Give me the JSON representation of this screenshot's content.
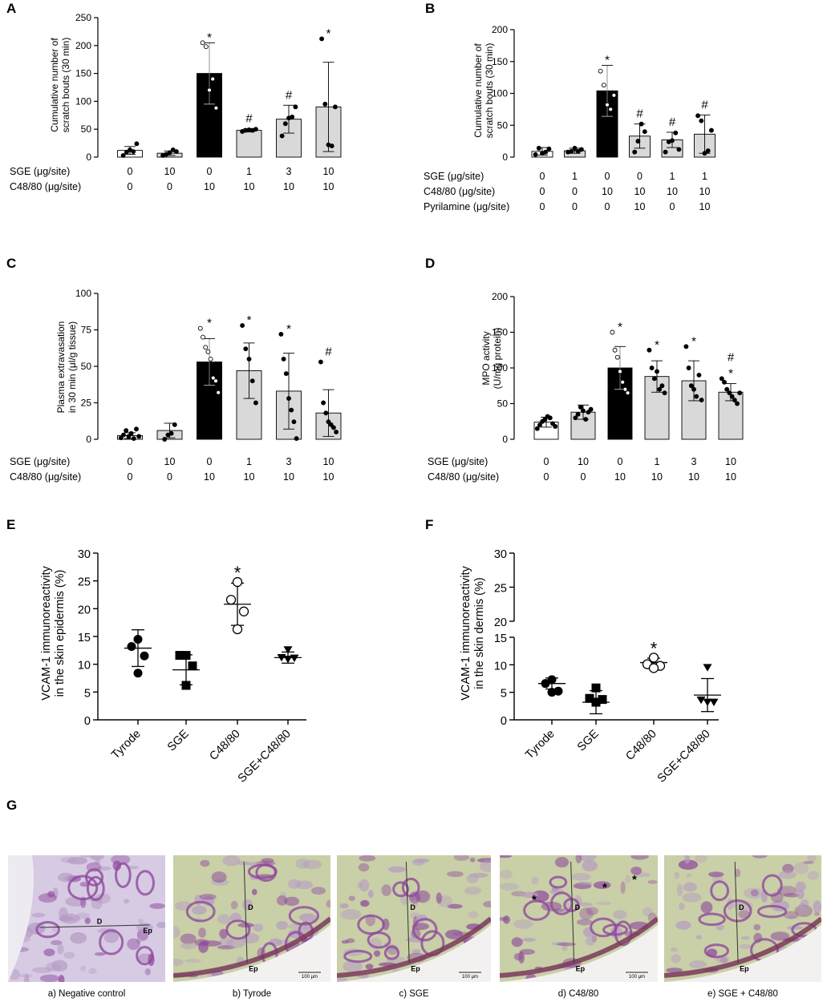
{
  "chart_data": [
    {
      "panel": "A",
      "type": "bar",
      "ylabel": [
        "Cumulative number of",
        "scratch bouts (30 min)"
      ],
      "ylim": [
        0,
        250
      ],
      "yticks": [
        0,
        50,
        100,
        150,
        200,
        250
      ],
      "rows": [
        {
          "label": "SGE (μg/site)",
          "values": [
            "0",
            "10",
            "0",
            "1",
            "3",
            "10"
          ]
        },
        {
          "label": "C48/80 (μg/site)",
          "values": [
            "0",
            "0",
            "10",
            "10",
            "10",
            "10"
          ]
        }
      ],
      "fills": [
        "#ffffff",
        "#d9d9d9",
        "#000000",
        "#d9d9d9",
        "#d9d9d9",
        "#d9d9d9"
      ],
      "values": [
        12,
        7,
        150,
        48,
        68,
        90
      ],
      "errors": [
        7,
        4,
        55,
        3,
        25,
        80
      ],
      "marks": [
        "",
        "",
        "*",
        "#",
        "#",
        "*"
      ],
      "points": [
        [
          3,
          9,
          13,
          10,
          24
        ],
        [
          3,
          5,
          8,
          13,
          10
        ],
        [
          205,
          198,
          120,
          140,
          88
        ],
        [
          46,
          48,
          49,
          48,
          50
        ],
        [
          38,
          60,
          70,
          72,
          90
        ],
        [
          212,
          95,
          22,
          20,
          90
        ]
      ]
    },
    {
      "panel": "B",
      "type": "bar",
      "ylabel": [
        "Cumulative number of",
        "scratch bouts (30 min)"
      ],
      "ylim": [
        0,
        200
      ],
      "yticks": [
        0,
        50,
        100,
        150,
        200
      ],
      "rows": [
        {
          "label": "SGE (μg/site)",
          "values": [
            "0",
            "1",
            "0",
            "0",
            "1",
            "1"
          ]
        },
        {
          "label": "C48/80 (μg/site)",
          "values": [
            "0",
            "0",
            "10",
            "10",
            "10",
            "10"
          ]
        },
        {
          "label": "Pyrilamine (μg/site)",
          "values": [
            "0",
            "0",
            "0",
            "10",
            "0",
            "10"
          ]
        }
      ],
      "fills": [
        "#ffffff",
        "#d9d9d9",
        "#000000",
        "#d9d9d9",
        "#d9d9d9",
        "#d9d9d9"
      ],
      "values": [
        9,
        10,
        104,
        33,
        27,
        36
      ],
      "errors": [
        6,
        4,
        40,
        19,
        12,
        30
      ],
      "marks": [
        "",
        "",
        "*",
        "#",
        "#",
        "#"
      ],
      "points": [
        [
          4,
          14,
          6,
          8,
          13
        ],
        [
          8,
          9,
          14,
          9,
          12
        ],
        [
          135,
          113,
          82,
          75,
          97
        ],
        [
          8,
          25,
          52,
          40
        ],
        [
          8,
          24,
          26,
          38,
          12
        ],
        [
          65,
          57,
          6,
          10,
          42
        ]
      ]
    },
    {
      "panel": "C",
      "type": "bar",
      "ylabel": [
        "Plasma extravasation",
        "in 30 min (μl/g tissue)"
      ],
      "ylim": [
        0,
        100
      ],
      "yticks": [
        0,
        25,
        50,
        75,
        100
      ],
      "rows": [
        {
          "label": "SGE (μg/site)",
          "values": [
            "0",
            "10",
            "0",
            "1",
            "3",
            "10"
          ]
        },
        {
          "label": "C48/80 (μg/site)",
          "values": [
            "0",
            "0",
            "10",
            "10",
            "10",
            "10"
          ]
        }
      ],
      "fills": [
        "#ffffff",
        "#d9d9d9",
        "#000000",
        "#d9d9d9",
        "#d9d9d9",
        "#d9d9d9"
      ],
      "values": [
        2.5,
        6,
        53,
        47,
        33,
        18
      ],
      "errors": [
        2,
        5,
        16,
        19,
        26,
        16
      ],
      "marks": [
        "",
        "",
        "*",
        "*",
        "*",
        "#"
      ],
      "points": [
        [
          1,
          3,
          6,
          2,
          4,
          0.5,
          7,
          2
        ],
        [
          0,
          3,
          4,
          10
        ],
        [
          76,
          70,
          63,
          60,
          55,
          42,
          40,
          32
        ],
        [
          78,
          62,
          55,
          40,
          25
        ],
        [
          72,
          55,
          45,
          28,
          20,
          12,
          0.5
        ],
        [
          53,
          25,
          18,
          12,
          10,
          8,
          5
        ]
      ]
    },
    {
      "panel": "D",
      "type": "bar",
      "ylabel": [
        "MPO activity",
        "(U/mg protein)"
      ],
      "ylim": [
        0,
        200
      ],
      "yticks": [
        0,
        50,
        100,
        150,
        200
      ],
      "rows": [
        {
          "label": "SGE (μg/site)",
          "values": [
            "0",
            "10",
            "0",
            "1",
            "3",
            "10"
          ]
        },
        {
          "label": "C48/80 (μg/site)",
          "values": [
            "0",
            "0",
            "10",
            "10",
            "10",
            "10"
          ]
        }
      ],
      "fills": [
        "#ffffff",
        "#d9d9d9",
        "#000000",
        "#d9d9d9",
        "#d9d9d9",
        "#d9d9d9"
      ],
      "values": [
        24,
        38,
        100,
        88,
        82,
        66
      ],
      "errors": [
        7,
        10,
        30,
        22,
        28,
        12
      ],
      "marks": [
        "",
        "",
        "*",
        "*",
        "*",
        "#*"
      ],
      "points": [
        [
          15,
          20,
          25,
          28,
          32,
          30,
          22,
          18
        ],
        [
          30,
          35,
          45,
          40,
          28,
          38,
          42
        ],
        [
          150,
          125,
          115,
          95,
          80,
          70,
          65
        ],
        [
          125,
          100,
          85,
          95,
          70,
          75,
          65
        ],
        [
          130,
          100,
          75,
          70,
          60,
          90,
          55
        ],
        [
          85,
          80,
          70,
          65,
          60,
          55,
          50,
          65
        ]
      ]
    },
    {
      "panel": "E",
      "type": "scatter",
      "ylabel": [
        "VCAM-1 immunoreactivity",
        "in the skin epidermis (%)"
      ],
      "ylim": [
        0,
        30
      ],
      "yticks": [
        0,
        5,
        10,
        15,
        20,
        25,
        30
      ],
      "categories": [
        "Tyrode",
        "SGE",
        "C48/80",
        "SGE+C48/80"
      ],
      "markers": [
        "circle-filled",
        "square-filled",
        "circle-open",
        "triangle-down-filled"
      ],
      "means": [
        12.9,
        9.0,
        20.8,
        11.2
      ],
      "errors": [
        3.3,
        2.7,
        3.8,
        1.0
      ],
      "marks": [
        "",
        "",
        "*",
        ""
      ],
      "points": [
        [
          14.5,
          13.2,
          11.5,
          8.4
        ],
        [
          11.6,
          11.6,
          9.7,
          6.2
        ],
        [
          24.8,
          21.6,
          19.5,
          16.3
        ],
        [
          12.6,
          11.2,
          11.1,
          10.9
        ]
      ]
    },
    {
      "panel": "F",
      "type": "scatter",
      "ylabel": [
        "VCAM-1 immunoreactivity",
        "in the skin dermis (%)"
      ],
      "ylim": [
        0,
        30
      ],
      "axis_break": [
        15,
        20
      ],
      "yticks": [
        0,
        5,
        10,
        15,
        20,
        25,
        30
      ],
      "categories": [
        "Tyrode",
        "SGE",
        "C48/80",
        "SGE+C48/80"
      ],
      "markers": [
        "circle-filled",
        "square-filled",
        "circle-open",
        "triangle-down-filled"
      ],
      "means": [
        6.6,
        3.2,
        10.4,
        4.5
      ],
      "errors": [
        1.0,
        2.1,
        0.8,
        3.0
      ],
      "marks": [
        "",
        "",
        "*",
        ""
      ],
      "points": [
        [
          7.3,
          6.6,
          5.2,
          5.0
        ],
        [
          5.8,
          3.9,
          3.7,
          3.2
        ],
        [
          11.3,
          10.1,
          9.8,
          9.4
        ],
        [
          9.5,
          3.6,
          3.2,
          3.2
        ]
      ]
    }
  ],
  "panel_g": {
    "letter": "G",
    "panels": [
      {
        "caption": "a) Negative control",
        "labels": [
          "D",
          "Ep"
        ],
        "scale": ""
      },
      {
        "caption": "b) Tyrode",
        "labels": [
          "D",
          "Ep"
        ],
        "scale": "100 μm"
      },
      {
        "caption": "c) SGE",
        "labels": [
          "D",
          "Ep"
        ],
        "scale": "100 μm"
      },
      {
        "caption": "d) C48/80",
        "labels": [
          "D",
          "Ep",
          "*",
          "*",
          "*"
        ],
        "scale": "100 μm"
      },
      {
        "caption": "e) SGE + C48/80",
        "labels": [
          "D",
          "Ep"
        ],
        "scale": ""
      }
    ],
    "colors": {
      "bg": "#e6e4e2",
      "tissue": "#b59ac4",
      "stain": "#8e4a9c",
      "fiber": "#c9cfa7",
      "epi": "#7a3a5a"
    }
  }
}
